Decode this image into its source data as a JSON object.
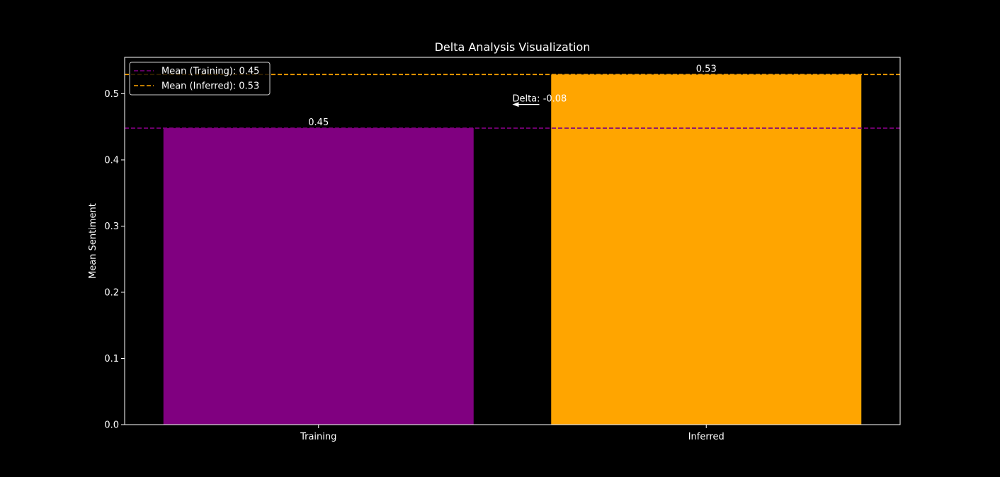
{
  "chart_data": {
    "type": "bar",
    "title": "Delta Analysis Visualization",
    "xlabel": "",
    "ylabel": "Mean Sentiment",
    "categories": [
      "Training",
      "Inferred"
    ],
    "values": [
      0.448,
      0.529
    ],
    "bar_labels": [
      "0.45",
      "0.53"
    ],
    "colors": [
      "#800080",
      "#FFA500"
    ],
    "ylim": [
      0,
      0.555
    ],
    "yticks": [
      0.0,
      0.1,
      0.2,
      0.3,
      0.4,
      0.5
    ],
    "ytick_labels": [
      "0.0",
      "0.1",
      "0.2",
      "0.3",
      "0.4",
      "0.5"
    ],
    "grid": false,
    "legend_position": "top-left",
    "mean_lines": [
      {
        "label": "Mean (Training): 0.45",
        "value": 0.448,
        "color": "#800080",
        "style": "dashed"
      },
      {
        "label": "Mean (Inferred): 0.53",
        "value": 0.529,
        "color": "#FFA500",
        "style": "dashed"
      }
    ],
    "annotation": {
      "text": "Delta: -0.08",
      "x_category": 0.5,
      "y": 0.488,
      "arrow": true
    },
    "background": "#000000",
    "foreground": "#ffffff"
  }
}
